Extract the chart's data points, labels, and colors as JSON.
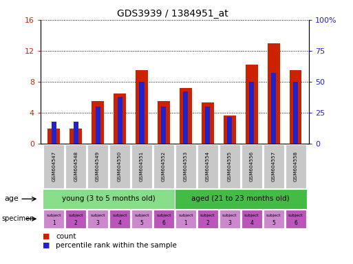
{
  "title": "GDS3939 / 1384951_at",
  "samples": [
    "GSM604547",
    "GSM604548",
    "GSM604549",
    "GSM604550",
    "GSM604551",
    "GSM604552",
    "GSM604553",
    "GSM604554",
    "GSM604555",
    "GSM604556",
    "GSM604557",
    "GSM604558"
  ],
  "count_values": [
    2.0,
    2.0,
    5.5,
    6.5,
    9.5,
    5.5,
    7.2,
    5.3,
    3.7,
    10.2,
    13.0,
    9.5
  ],
  "percentile_values_pct": [
    18,
    18,
    30,
    38,
    50,
    30,
    42,
    30,
    22,
    50,
    57,
    50
  ],
  "ylim_left": [
    0,
    16
  ],
  "ylim_right": [
    0,
    100
  ],
  "yticks_left": [
    0,
    4,
    8,
    12,
    16
  ],
  "ytick_labels_left": [
    "0",
    "4",
    "8",
    "12",
    "16"
  ],
  "yticks_right": [
    0,
    25,
    50,
    75,
    100
  ],
  "ytick_labels_right": [
    "0",
    "25",
    "50",
    "75",
    "100%"
  ],
  "color_count": "#cc2200",
  "color_percentile": "#2222cc",
  "color_bg_young": "#88dd88",
  "color_bg_aged": "#44bb44",
  "color_specimen_light": "#cc88cc",
  "color_specimen_dark": "#bb55bb",
  "color_tick_label_left": "#cc2200",
  "color_tick_label_right": "#2222cc",
  "age_groups": [
    {
      "label": "young (3 to 5 months old)",
      "start": 0,
      "end": 6
    },
    {
      "label": "aged (21 to 23 months old)",
      "start": 6,
      "end": 12
    }
  ],
  "bar_width": 0.55,
  "grid_color": "#000000",
  "xticklabel_bg": "#c8c8c8",
  "specimen_numbers": [
    1,
    2,
    3,
    4,
    5,
    6,
    1,
    2,
    3,
    4,
    5,
    6
  ]
}
